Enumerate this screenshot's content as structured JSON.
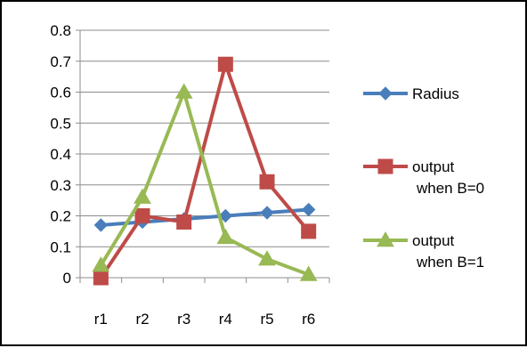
{
  "chart_data": {
    "type": "line",
    "categories": [
      "r1",
      "r2",
      "r3",
      "r4",
      "r5",
      "r6"
    ],
    "ylim": [
      0,
      0.8
    ],
    "yticks": [
      "0",
      "0.1",
      "0.2",
      "0.3",
      "0.4",
      "0.5",
      "0.6",
      "0.7",
      "0.8"
    ],
    "grid": true,
    "legend_position": "right",
    "series": [
      {
        "name": "Radius",
        "legend_lines": [
          "Radius"
        ],
        "color": "#4a7ebb",
        "marker": "diamond",
        "values": [
          0.17,
          0.18,
          0.19,
          0.2,
          0.21,
          0.22
        ]
      },
      {
        "name": "output when B=0",
        "legend_lines": [
          "output",
          "when B=0"
        ],
        "color": "#be4b48",
        "marker": "square",
        "values": [
          0.0,
          0.2,
          0.18,
          0.69,
          0.31,
          0.15
        ]
      },
      {
        "name": "output when B=1",
        "legend_lines": [
          "output",
          "when B=1"
        ],
        "color": "#98b954",
        "marker": "triangle",
        "values": [
          0.04,
          0.26,
          0.6,
          0.13,
          0.06,
          0.01
        ]
      }
    ]
  }
}
